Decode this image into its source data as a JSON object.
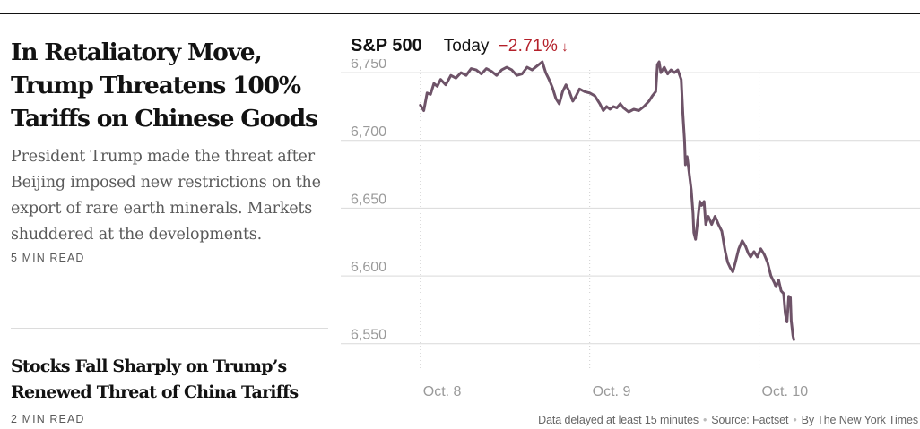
{
  "article": {
    "headline": "In Retaliatory Move, Trump Threatens 100% Tariffs on Chinese Goods",
    "summary": "President Trump made the threat after Beijing imposed new restrictions on the export of rare earth minerals. Markets shuddered at the developments.",
    "read_time": "5 MIN READ"
  },
  "related": {
    "headline": "Stocks Fall Sharply on Trump’s Renewed Threat of China Tariffs",
    "read_time": "2 MIN READ"
  },
  "chart_header": {
    "index_name": "S&P 500",
    "period": "Today",
    "change": "−2.71%",
    "arrow_icon": "down-arrow-icon"
  },
  "chart_data": {
    "type": "line",
    "title": "S&P 500",
    "y_tick_labels": [
      "6,750",
      "6,700",
      "6,650",
      "6,600",
      "6,550"
    ],
    "y_ticks": [
      6750,
      6700,
      6650,
      6600,
      6550
    ],
    "ylim": [
      6530,
      6760
    ],
    "x_tick_labels": [
      "Oct. 8",
      "Oct. 9",
      "Oct. 10"
    ],
    "x_ticks": [
      0,
      1,
      2
    ],
    "xlim": [
      -0.02,
      2.95
    ],
    "line_color": "#6e5368",
    "series": [
      {
        "name": "S&P 500",
        "points": [
          [
            0.0,
            6726
          ],
          [
            0.02,
            6722
          ],
          [
            0.04,
            6735
          ],
          [
            0.06,
            6734
          ],
          [
            0.08,
            6742
          ],
          [
            0.1,
            6740
          ],
          [
            0.12,
            6745
          ],
          [
            0.15,
            6741
          ],
          [
            0.18,
            6748
          ],
          [
            0.21,
            6746
          ],
          [
            0.24,
            6750
          ],
          [
            0.27,
            6748
          ],
          [
            0.3,
            6753
          ],
          [
            0.33,
            6752
          ],
          [
            0.36,
            6749
          ],
          [
            0.39,
            6753
          ],
          [
            0.42,
            6751
          ],
          [
            0.45,
            6748
          ],
          [
            0.48,
            6752
          ],
          [
            0.51,
            6754
          ],
          [
            0.54,
            6752
          ],
          [
            0.57,
            6748
          ],
          [
            0.6,
            6749
          ],
          [
            0.63,
            6754
          ],
          [
            0.66,
            6752
          ],
          [
            0.69,
            6755
          ],
          [
            0.72,
            6758
          ],
          [
            0.74,
            6750
          ],
          [
            0.76,
            6745
          ],
          [
            0.78,
            6739
          ],
          [
            0.8,
            6731
          ],
          [
            0.82,
            6727
          ],
          [
            0.84,
            6736
          ],
          [
            0.86,
            6741
          ],
          [
            0.88,
            6736
          ],
          [
            0.9,
            6729
          ],
          [
            0.92,
            6733
          ],
          [
            0.94,
            6738
          ],
          [
            0.97,
            6736
          ],
          [
            1.0,
            6735
          ],
          [
            1.03,
            6733
          ],
          [
            1.06,
            6727
          ],
          [
            1.08,
            6722
          ],
          [
            1.1,
            6725
          ],
          [
            1.12,
            6723
          ],
          [
            1.14,
            6725
          ],
          [
            1.16,
            6724
          ],
          [
            1.18,
            6727
          ],
          [
            1.2,
            6724
          ],
          [
            1.23,
            6721
          ],
          [
            1.26,
            6723
          ],
          [
            1.29,
            6722
          ],
          [
            1.32,
            6725
          ],
          [
            1.35,
            6729
          ],
          [
            1.37,
            6733
          ],
          [
            1.39,
            6736
          ],
          [
            1.4,
            6756
          ],
          [
            1.41,
            6758
          ],
          [
            1.42,
            6750
          ],
          [
            1.44,
            6754
          ],
          [
            1.46,
            6749
          ],
          [
            1.48,
            6752
          ],
          [
            1.5,
            6750
          ],
          [
            1.52,
            6752
          ],
          [
            1.54,
            6745
          ],
          [
            1.55,
            6719
          ],
          [
            1.56,
            6700
          ],
          [
            1.565,
            6682
          ],
          [
            1.575,
            6688
          ],
          [
            1.585,
            6678
          ],
          [
            1.6,
            6663
          ],
          [
            1.61,
            6646
          ],
          [
            1.615,
            6632
          ],
          [
            1.625,
            6627
          ],
          [
            1.635,
            6638
          ],
          [
            1.65,
            6655
          ],
          [
            1.66,
            6652
          ],
          [
            1.675,
            6655
          ],
          [
            1.685,
            6638
          ],
          [
            1.7,
            6644
          ],
          [
            1.72,
            6638
          ],
          [
            1.74,
            6644
          ],
          [
            1.76,
            6638
          ],
          [
            1.78,
            6633
          ],
          [
            1.8,
            6618
          ],
          [
            1.815,
            6610
          ],
          [
            1.83,
            6606
          ],
          [
            1.845,
            6603
          ],
          [
            1.86,
            6610
          ],
          [
            1.88,
            6620
          ],
          [
            1.9,
            6626
          ],
          [
            1.92,
            6622
          ],
          [
            1.935,
            6617
          ],
          [
            1.95,
            6614
          ],
          [
            1.97,
            6618
          ],
          [
            1.99,
            6614
          ],
          [
            2.01,
            6620
          ],
          [
            2.03,
            6616
          ],
          [
            2.05,
            6610
          ],
          [
            2.07,
            6600
          ],
          [
            2.09,
            6595
          ],
          [
            2.1,
            6592
          ],
          [
            2.115,
            6597
          ],
          [
            2.13,
            6589
          ],
          [
            2.145,
            6587
          ],
          [
            2.155,
            6572
          ],
          [
            2.165,
            6566
          ],
          [
            2.175,
            6585
          ],
          [
            2.185,
            6584
          ],
          [
            2.19,
            6567
          ],
          [
            2.2,
            6556
          ],
          [
            2.205,
            6553
          ]
        ]
      }
    ]
  },
  "footer": {
    "delay_note": "Data delayed at least 15 minutes",
    "source": "Source: Factset",
    "credit": "By The New York Times"
  }
}
